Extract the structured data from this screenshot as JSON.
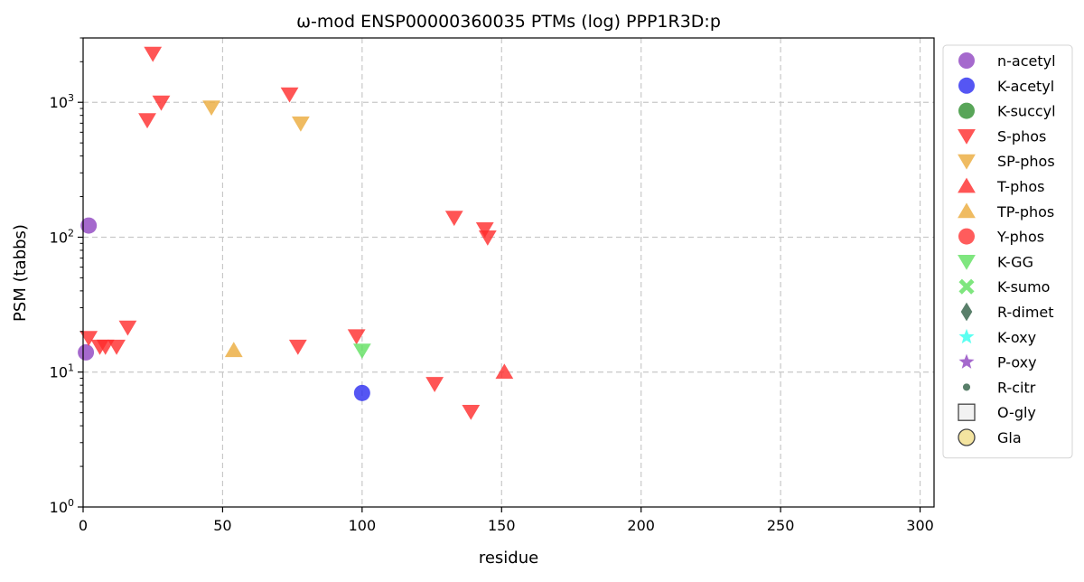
{
  "chart_data": {
    "type": "scatter",
    "title": "ω-mod ENSP00000360035 PTMs (log) PPP1R3D:p",
    "xlabel": "residue",
    "ylabel": "PSM (tabbs)",
    "xlim": [
      0,
      305
    ],
    "ylim": [
      1,
      3000
    ],
    "yscale": "log",
    "grid": true,
    "legend_position": "right",
    "x_ticks": [
      0,
      50,
      100,
      150,
      200,
      250,
      300
    ],
    "y_ticks": [
      1,
      10,
      100,
      1000
    ],
    "y_tick_labels": [
      {
        "base": "10",
        "exp": "0"
      },
      {
        "base": "10",
        "exp": "1"
      },
      {
        "base": "10",
        "exp": "2"
      },
      {
        "base": "10",
        "exp": "3"
      }
    ],
    "series": [
      {
        "name": "n-acetyl",
        "marker": "circle",
        "color": "#8e44c0",
        "points": [
          [
            2,
            122
          ],
          [
            1,
            14
          ]
        ]
      },
      {
        "name": "K-acetyl",
        "marker": "circle",
        "color": "#2a2cf0",
        "points": [
          [
            100,
            7
          ]
        ]
      },
      {
        "name": "K-succyl",
        "marker": "circle",
        "color": "#2e8f2e",
        "points": []
      },
      {
        "name": "S-phos",
        "marker": "triangle-down",
        "color": "#ff2a2a",
        "points": [
          [
            25,
            2300
          ],
          [
            28,
            1000
          ],
          [
            23,
            740
          ],
          [
            74,
            1150
          ],
          [
            133,
            140
          ],
          [
            144,
            115
          ],
          [
            145,
            100
          ],
          [
            2,
            18
          ],
          [
            6,
            15.5
          ],
          [
            8,
            15.5
          ],
          [
            12,
            15.5
          ],
          [
            16,
            21.5
          ],
          [
            77,
            15.5
          ],
          [
            98,
            18.5
          ],
          [
            126,
            8.2
          ],
          [
            139,
            5.1
          ]
        ]
      },
      {
        "name": "SP-phos",
        "marker": "triangle-down",
        "color": "#ebaa3a",
        "points": [
          [
            46,
            920
          ],
          [
            78,
            700
          ]
        ]
      },
      {
        "name": "T-phos",
        "marker": "triangle-up",
        "color": "#ff2a2a",
        "points": [
          [
            151,
            10
          ]
        ]
      },
      {
        "name": "TP-phos",
        "marker": "triangle-up",
        "color": "#ebaa3a",
        "points": [
          [
            54,
            14.5
          ]
        ]
      },
      {
        "name": "Y-phos",
        "marker": "circle",
        "color": "#ff3333",
        "points": []
      },
      {
        "name": "K-GG",
        "marker": "triangle-down",
        "color": "#5fe05f",
        "points": [
          [
            100,
            14.5
          ]
        ]
      },
      {
        "name": "K-sumo",
        "marker": "x",
        "color": "#5fe05f",
        "points": []
      },
      {
        "name": "R-dimet",
        "marker": "diamond",
        "color": "#2f5f45",
        "points": []
      },
      {
        "name": "K-oxy",
        "marker": "star",
        "color": "#33ffee",
        "points": []
      },
      {
        "name": "P-oxy",
        "marker": "star",
        "color": "#8e44c0",
        "points": []
      },
      {
        "name": "R-citr",
        "marker": "small-circle",
        "color": "#2f5f45",
        "points": []
      },
      {
        "name": "O-gly",
        "marker": "square-open",
        "color": "#555555",
        "points": []
      },
      {
        "name": "Gla",
        "marker": "circle-open",
        "color": "#f4e4a0",
        "points": []
      }
    ]
  }
}
